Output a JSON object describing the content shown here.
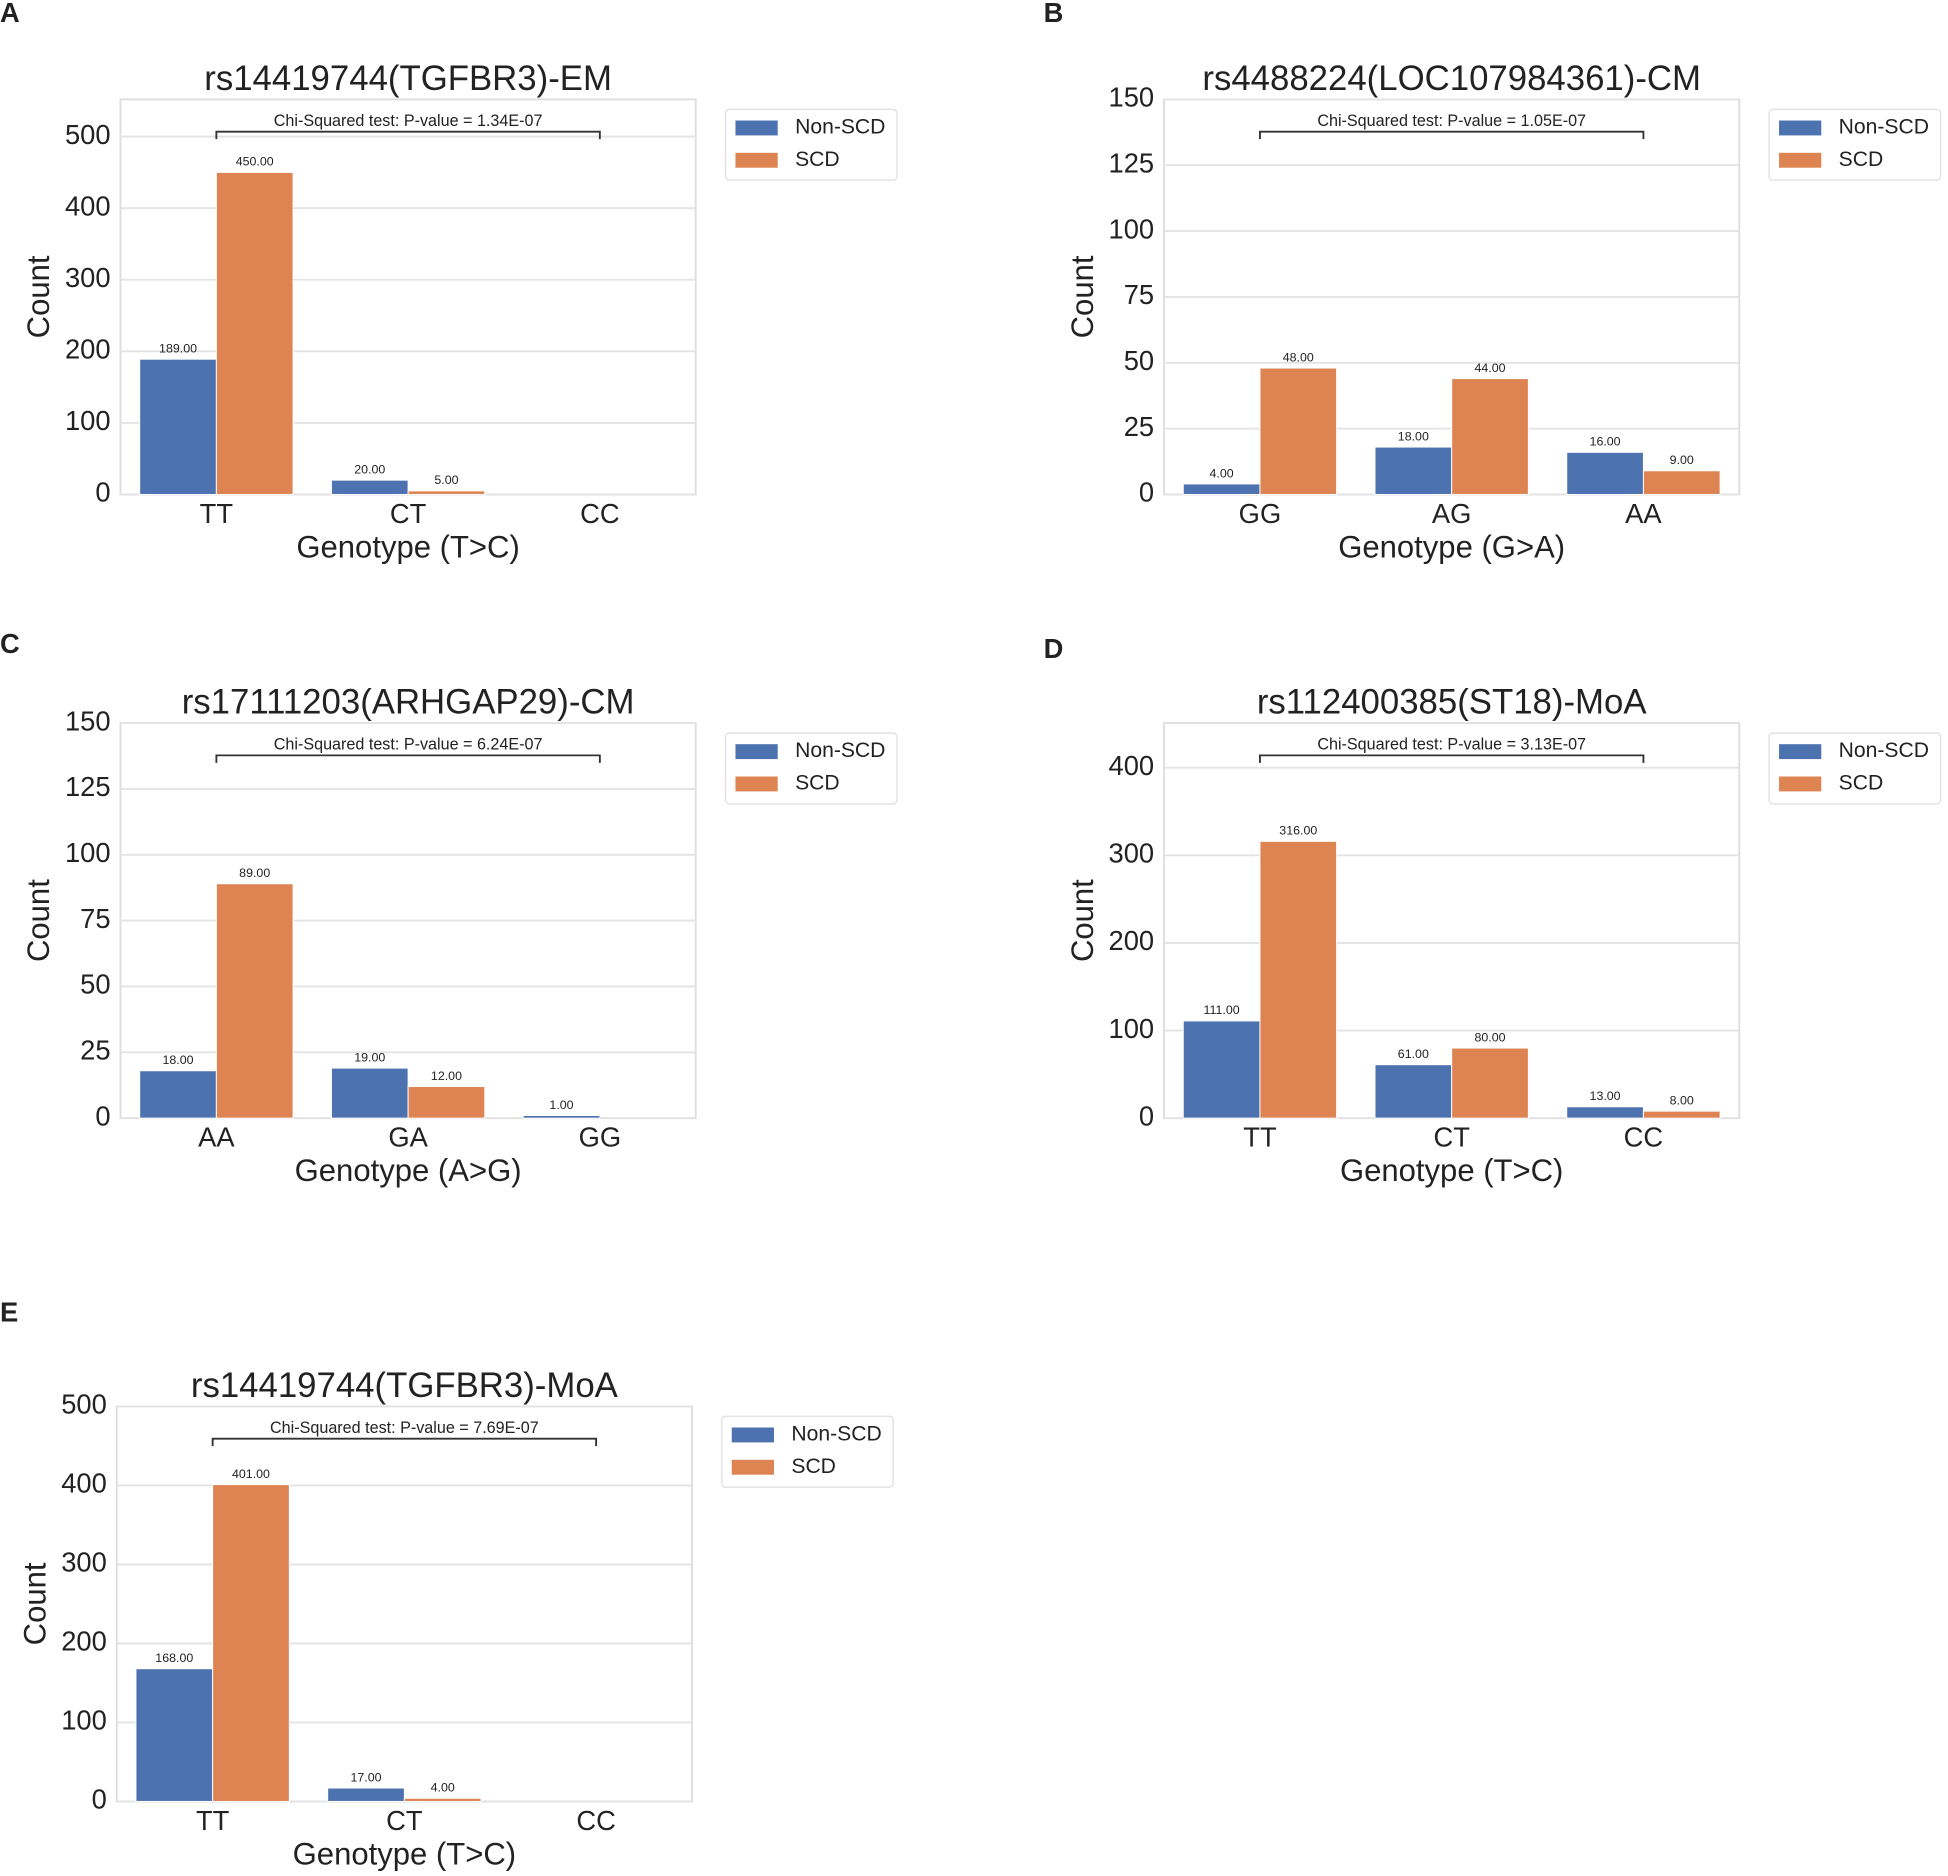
{
  "chart_data": [
    {
      "panel_label": "A",
      "type": "bar",
      "title": "rs14419744(TGFBR3)-EM",
      "xlabel": "Genotype (T>C)",
      "ylabel": "Count",
      "categories": [
        "TT",
        "CT",
        "CC"
      ],
      "series": [
        {
          "name": "Non-SCD",
          "color": "#4c72b0",
          "values": [
            189,
            20,
            null
          ],
          "value_labels": [
            "189.00",
            "20.00",
            null
          ]
        },
        {
          "name": "SCD",
          "color": "#dd8452",
          "values": [
            450,
            5,
            null
          ],
          "value_labels": [
            "450.00",
            "5.00",
            null
          ]
        }
      ],
      "ylim": [
        0,
        552
      ],
      "yticks": [
        0,
        100,
        200,
        300,
        400,
        500
      ],
      "grid": true,
      "legend": "outside right",
      "annotation": "Chi-Squared test: P-value = 1.34E-07"
    },
    {
      "panel_label": "B",
      "type": "bar",
      "title": "rs4488224(LOC107984361)-CM",
      "xlabel": "Genotype (G>A)",
      "ylabel": "Count",
      "categories": [
        "GG",
        "AG",
        "AA"
      ],
      "series": [
        {
          "name": "Non-SCD",
          "color": "#4c72b0",
          "values": [
            4,
            18,
            16
          ],
          "value_labels": [
            "4.00",
            "18.00",
            "16.00"
          ]
        },
        {
          "name": "SCD",
          "color": "#dd8452",
          "values": [
            48,
            44,
            9
          ],
          "value_labels": [
            "48.00",
            "44.00",
            "9.00"
          ]
        }
      ],
      "ylim": [
        0,
        150
      ],
      "yticks": [
        0,
        25,
        50,
        75,
        100,
        125,
        150
      ],
      "grid": true,
      "legend": "outside right",
      "annotation": "Chi-Squared test: P-value = 1.05E-07"
    },
    {
      "panel_label": "C",
      "type": "bar",
      "title": "rs17111203(ARHGAP29)-CM",
      "xlabel": "Genotype (A>G)",
      "ylabel": "Count",
      "categories": [
        "AA",
        "GA",
        "GG"
      ],
      "series": [
        {
          "name": "Non-SCD",
          "color": "#4c72b0",
          "values": [
            18,
            19,
            1
          ],
          "value_labels": [
            "18.00",
            "19.00",
            "1.00"
          ]
        },
        {
          "name": "SCD",
          "color": "#dd8452",
          "values": [
            89,
            12,
            null
          ],
          "value_labels": [
            "89.00",
            "12.00",
            null
          ]
        }
      ],
      "ylim": [
        0,
        150
      ],
      "yticks": [
        0,
        25,
        50,
        75,
        100,
        125,
        150
      ],
      "grid": true,
      "legend": "outside right",
      "annotation": "Chi-Squared test: P-value = 6.24E-07"
    },
    {
      "panel_label": "D",
      "type": "bar",
      "title": "rs112400385(ST18)-MoA",
      "xlabel": "Genotype (T>C)",
      "ylabel": "Count",
      "categories": [
        "TT",
        "CT",
        "CC"
      ],
      "series": [
        {
          "name": "Non-SCD",
          "color": "#4c72b0",
          "values": [
            111,
            61,
            13
          ],
          "value_labels": [
            "111.00",
            "61.00",
            "13.00"
          ]
        },
        {
          "name": "SCD",
          "color": "#dd8452",
          "values": [
            316,
            80,
            8
          ],
          "value_labels": [
            "316.00",
            "80.00",
            "8.00"
          ]
        }
      ],
      "ylim": [
        0,
        451
      ],
      "yticks": [
        0,
        100,
        200,
        300,
        400
      ],
      "grid": true,
      "legend": "outside right",
      "annotation": "Chi-Squared test: P-value = 3.13E-07"
    },
    {
      "panel_label": "E",
      "type": "bar",
      "title": "rs14419744(TGFBR3)-MoA",
      "xlabel": "Genotype (T>C)",
      "ylabel": "Count",
      "categories": [
        "TT",
        "CT",
        "CC"
      ],
      "series": [
        {
          "name": "Non-SCD",
          "color": "#4c72b0",
          "values": [
            168,
            17,
            null
          ],
          "value_labels": [
            "168.00",
            "17.00",
            null
          ]
        },
        {
          "name": "SCD",
          "color": "#dd8452",
          "values": [
            401,
            4,
            null
          ],
          "value_labels": [
            "401.00",
            "4.00",
            null
          ]
        }
      ],
      "ylim": [
        0,
        500
      ],
      "yticks": [
        0,
        100,
        200,
        300,
        400,
        500
      ],
      "grid": true,
      "legend": "outside right",
      "annotation": "Chi-Squared test: P-value = 7.69E-07"
    }
  ]
}
